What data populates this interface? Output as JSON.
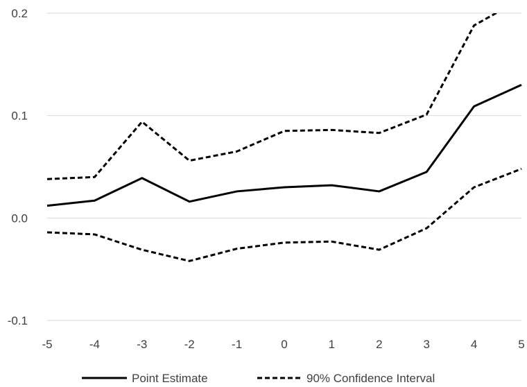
{
  "chart_data": {
    "type": "line",
    "x": [
      -5,
      -4,
      -3,
      -2,
      -1,
      0,
      1,
      2,
      3,
      4,
      5
    ],
    "xlim": [
      -5,
      5
    ],
    "ylim": [
      -0.1,
      0.2
    ],
    "xticks": [
      "-5",
      "-4",
      "-3",
      "-2",
      "-1",
      "0",
      "1",
      "2",
      "3",
      "4",
      "5"
    ],
    "yticks": [
      "-0.1",
      "0.0",
      "0.1",
      "0.2"
    ],
    "ytick_values": [
      -0.1,
      0.0,
      0.1,
      0.2
    ],
    "grid": "horizontal",
    "legend_position": "bottom",
    "series": [
      {
        "name": "Point Estimate",
        "style": "solid",
        "color": "#000000",
        "values": [
          0.012,
          0.017,
          0.039,
          0.016,
          0.026,
          0.03,
          0.032,
          0.026,
          0.045,
          0.109,
          0.13
        ]
      },
      {
        "name": "90% Confidence Interval",
        "style": "dashed",
        "color": "#000000",
        "values": [
          0.038,
          0.04,
          0.094,
          0.056,
          0.065,
          0.085,
          0.086,
          0.083,
          0.101,
          0.188,
          0.214
        ]
      },
      {
        "name": "",
        "style": "dashed",
        "color": "#000000",
        "values": [
          -0.014,
          -0.016,
          -0.031,
          -0.042,
          -0.03,
          -0.024,
          -0.023,
          -0.031,
          -0.01,
          0.03,
          0.048
        ]
      }
    ],
    "legend": [
      {
        "label": "Point Estimate",
        "style": "solid"
      },
      {
        "label": "90% Confidence Interval",
        "style": "dashed"
      }
    ]
  }
}
